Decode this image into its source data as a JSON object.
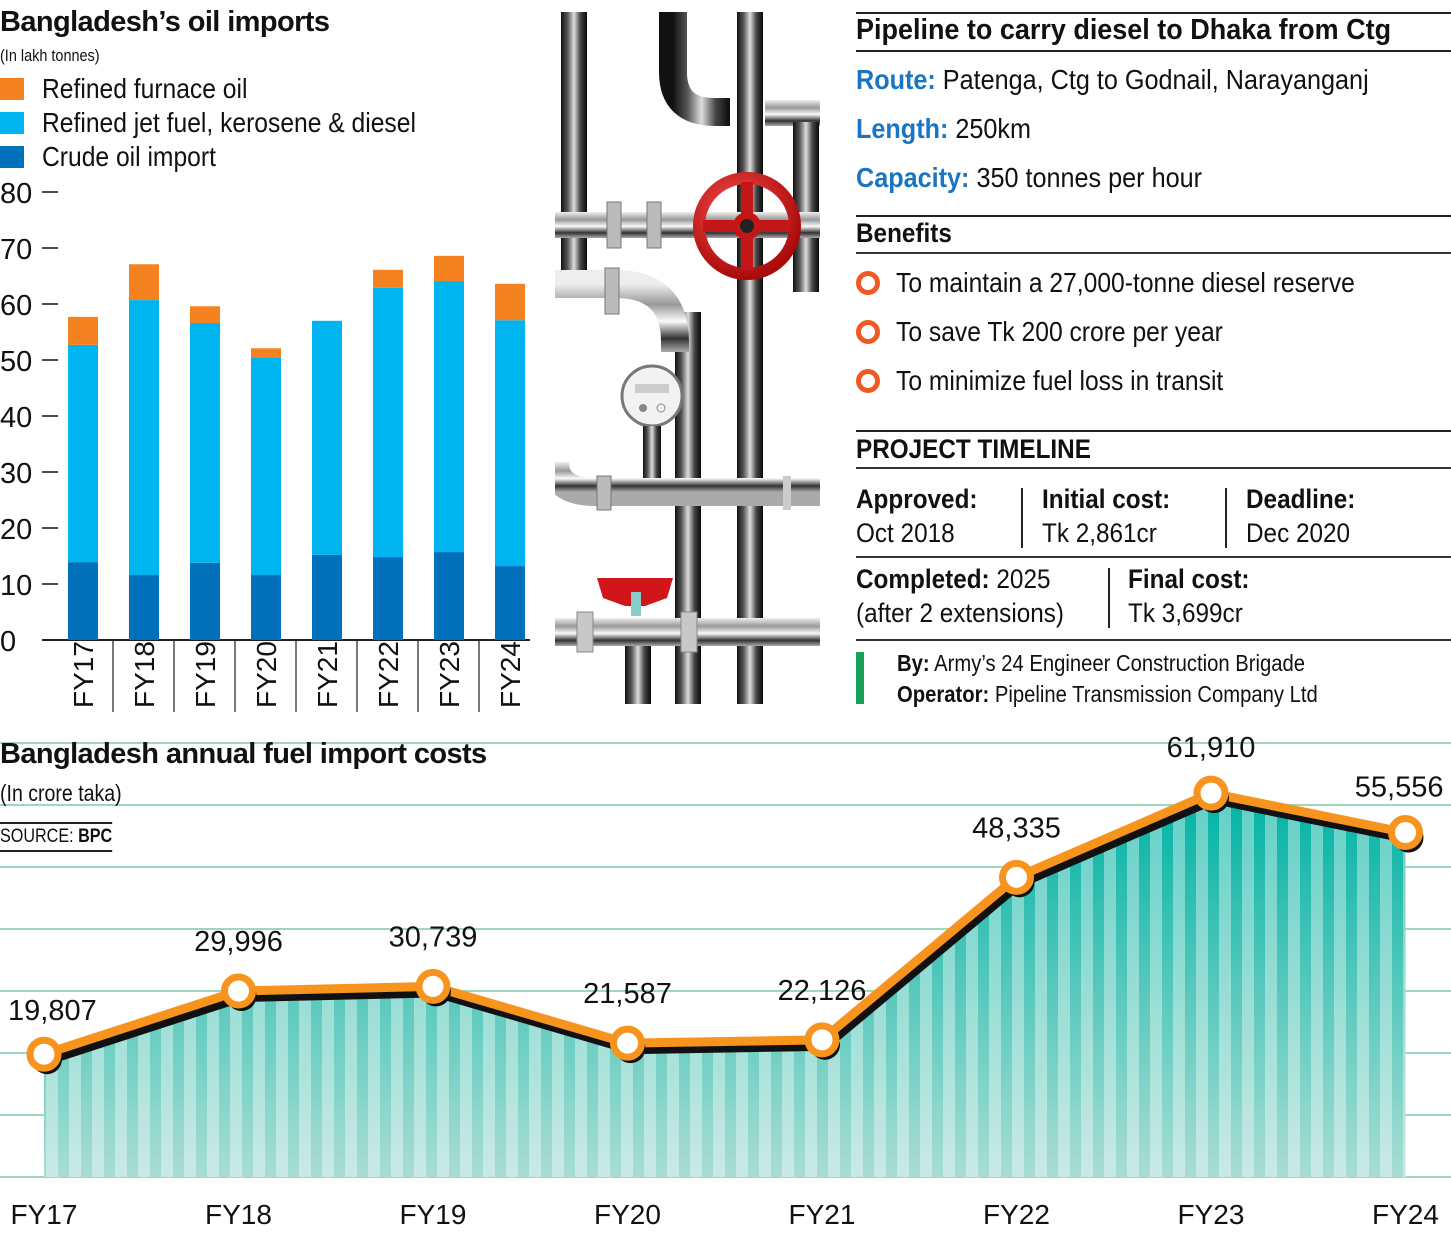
{
  "oil_imports": {
    "title": "Bangladesh’s oil imports",
    "subtitle": "(In lakh tonnes)",
    "legend": [
      {
        "label": "Refined furnace oil",
        "color": "#f58220"
      },
      {
        "label": "Refined jet fuel, kerosene & diesel",
        "color": "#00b5ef"
      },
      {
        "label": "Crude oil import",
        "color": "#0070bb"
      }
    ]
  },
  "pipeline": {
    "title": "Pipeline to carry diesel to Dhaka from Ctg",
    "route_label": "Route:",
    "route_value": "Patenga, Ctg to Godnail, Narayanganj",
    "length_label": "Length:",
    "length_value": "250km",
    "capacity_label": "Capacity:",
    "capacity_value": "350 tonnes per hour",
    "accent_color": "#1a76c2"
  },
  "benefits": {
    "heading": "Benefits",
    "items": [
      "To maintain a 27,000-tonne diesel reserve",
      "To save Tk 200 crore per year",
      "To minimize fuel loss in transit"
    ],
    "bullet_color": "#f05a22"
  },
  "timeline": {
    "heading": "PROJECT TIMELINE",
    "approved_label": "Approved:",
    "approved_value": "Oct 2018",
    "initial_cost_label": "Initial cost:",
    "initial_cost_value": "Tk 2,861cr",
    "deadline_label": "Deadline:",
    "deadline_value": "Dec 2020",
    "completed_label": "Completed:",
    "completed_value": "2025",
    "completed_note": "(after 2 extensions)",
    "final_cost_label": "Final cost:",
    "final_cost_value": "Tk 3,699cr",
    "by_label": "By:",
    "by_value": "Army’s 24 Engineer Construction Brigade",
    "operator_label": "Operator:",
    "operator_value": "Pipeline Transmission Company Ltd"
  },
  "fuel_costs": {
    "title": "Bangladesh annual fuel import costs",
    "subtitle": "(In crore taka)",
    "source_label": "SOURCE:",
    "source_value": "BPC"
  },
  "chart_data": [
    {
      "type": "bar",
      "stacked": true,
      "title": "Bangladesh’s oil imports",
      "subtitle": "(In lakh tonnes)",
      "categories": [
        "FY17",
        "FY18",
        "FY19",
        "FY20",
        "FY21",
        "FY22",
        "FY23",
        "FY24"
      ],
      "series": [
        {
          "name": "Crude oil import",
          "color": "#0070bb",
          "values": [
            13.9,
            11.6,
            13.8,
            11.6,
            15.2,
            14.8,
            15.7,
            13.2
          ]
        },
        {
          "name": "Refined jet fuel, kerosene & diesel",
          "color": "#00b5ef",
          "values": [
            38.8,
            49.1,
            42.8,
            38.9,
            41.8,
            48.1,
            48.4,
            43.9
          ]
        },
        {
          "name": "Refined furnace oil",
          "color": "#f58220",
          "values": [
            5.0,
            6.4,
            3.0,
            1.6,
            0,
            3.2,
            4.5,
            6.5
          ]
        }
      ],
      "yticks": [
        0,
        10,
        20,
        30,
        40,
        50,
        60,
        70,
        80
      ],
      "ylim": [
        0,
        80
      ],
      "xlabel": "",
      "ylabel": "",
      "legend": "top-left"
    },
    {
      "type": "area",
      "title": "Bangladesh annual fuel import costs",
      "subtitle": "(In crore taka)",
      "categories": [
        "FY17",
        "FY18",
        "FY19",
        "FY20",
        "FY21",
        "FY22",
        "FY23",
        "FY24"
      ],
      "values": [
        19807,
        29996,
        30739,
        21587,
        22126,
        48335,
        61910,
        55556
      ],
      "data_labels": [
        "19,807",
        "29,996",
        "30,739",
        "21,587",
        "22,126",
        "48,335",
        "61,910",
        "55,556"
      ],
      "ylim": [
        0,
        70000
      ],
      "grid": true,
      "line_color": "#f7941d",
      "fill_color": "#3fbfae",
      "grid_color": "#9fd8b9",
      "source": "BPC"
    }
  ]
}
